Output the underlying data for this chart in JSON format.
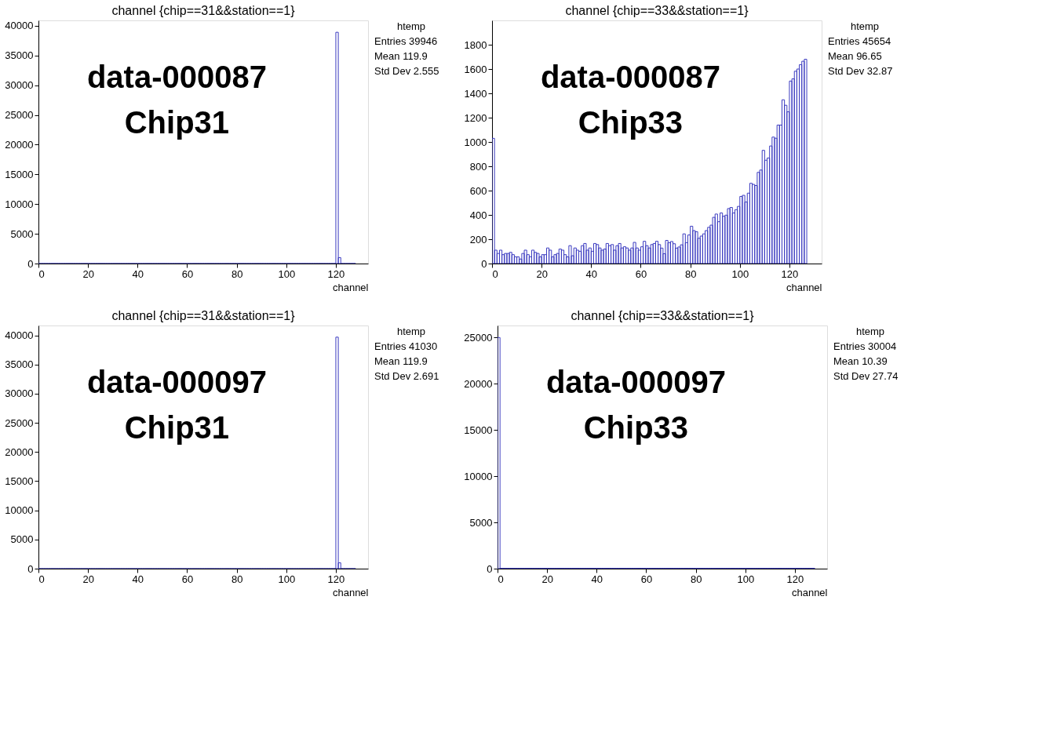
{
  "chart_data": [
    {
      "type": "histogram",
      "title": "channel {chip==31&&station==1}",
      "xlabel": "channel",
      "color": "#3b3bc0",
      "bins": [
        0,
        1,
        2,
        3,
        4,
        5,
        6,
        7,
        8,
        9,
        10,
        11,
        12,
        13,
        14,
        15,
        16,
        17,
        18,
        19,
        20,
        21,
        22,
        23,
        24,
        25,
        26,
        27,
        28,
        29,
        30,
        31,
        32,
        33,
        34,
        35,
        36,
        37,
        38,
        39,
        40,
        41,
        42,
        43,
        44,
        45,
        46,
        47,
        48,
        49,
        50,
        51,
        52,
        53,
        54,
        55,
        56,
        57,
        58,
        59,
        60,
        61,
        62,
        63,
        64,
        65,
        66,
        67,
        68,
        69,
        70,
        71,
        72,
        73,
        74,
        75,
        76,
        77,
        78,
        79,
        80,
        81,
        82,
        83,
        84,
        85,
        86,
        87,
        88,
        89,
        90,
        91,
        92,
        93,
        94,
        95,
        96,
        97,
        98,
        99,
        100,
        101,
        102,
        103,
        104,
        105,
        106,
        107,
        108,
        109,
        110,
        111,
        112,
        113,
        114,
        115,
        116,
        117,
        118,
        119,
        120,
        121,
        122,
        123,
        124,
        125,
        126,
        127,
        128
      ],
      "values": [
        0,
        0,
        0,
        0,
        0,
        0,
        0,
        0,
        0,
        0,
        0,
        0,
        0,
        0,
        0,
        0,
        0,
        0,
        0,
        0,
        0,
        0,
        0,
        0,
        0,
        0,
        0,
        0,
        0,
        0,
        0,
        0,
        0,
        0,
        0,
        0,
        0,
        0,
        0,
        0,
        0,
        0,
        0,
        0,
        0,
        0,
        0,
        0,
        0,
        0,
        0,
        0,
        0,
        0,
        0,
        0,
        0,
        0,
        0,
        0,
        0,
        0,
        0,
        0,
        0,
        0,
        0,
        0,
        0,
        0,
        0,
        0,
        0,
        0,
        0,
        0,
        0,
        0,
        0,
        0,
        0,
        0,
        0,
        0,
        0,
        0,
        0,
        0,
        0,
        0,
        0,
        0,
        0,
        0,
        0,
        0,
        0,
        0,
        0,
        0,
        0,
        0,
        0,
        0,
        0,
        0,
        0,
        0,
        0,
        0,
        0,
        0,
        0,
        0,
        0,
        0,
        0,
        0,
        0,
        0,
        38900,
        1000,
        0,
        0,
        0,
        0,
        0,
        0
      ],
      "xlim": [
        0,
        133
      ],
      "xticks": [
        0,
        20,
        40,
        60,
        80,
        100,
        120
      ],
      "ylim": [
        0,
        40900
      ],
      "yticks": [
        0,
        5000,
        10000,
        15000,
        20000,
        25000,
        30000,
        35000,
        40000
      ],
      "annotations": [
        "data-000087",
        "Chip31",
        "htemp",
        "Entries 39946",
        "Mean 119.9",
        "Std Dev 2.555"
      ]
    },
    {
      "type": "histogram",
      "title": "channel {chip==33&&station==1}",
      "xlabel": "channel",
      "color": "#3b3bc0",
      "bins": [
        0,
        1,
        2,
        3,
        4,
        5,
        6,
        7,
        8,
        9,
        10,
        11,
        12,
        13,
        14,
        15,
        16,
        17,
        18,
        19,
        20,
        21,
        22,
        23,
        24,
        25,
        26,
        27,
        28,
        29,
        30,
        31,
        32,
        33,
        34,
        35,
        36,
        37,
        38,
        39,
        40,
        41,
        42,
        43,
        44,
        45,
        46,
        47,
        48,
        49,
        50,
        51,
        52,
        53,
        54,
        55,
        56,
        57,
        58,
        59,
        60,
        61,
        62,
        63,
        64,
        65,
        66,
        67,
        68,
        69,
        70,
        71,
        72,
        73,
        74,
        75,
        76,
        77,
        78,
        79,
        80,
        81,
        82,
        83,
        84,
        85,
        86,
        87,
        88,
        89,
        90,
        91,
        92,
        93,
        94,
        95,
        96,
        97,
        98,
        99,
        100,
        101,
        102,
        103,
        104,
        105,
        106,
        107,
        108,
        109,
        110,
        111,
        112,
        113,
        114,
        115,
        116,
        117,
        118,
        119,
        120,
        121,
        122,
        123,
        124,
        125,
        126,
        127,
        128
      ],
      "values": [
        1030,
        110,
        83,
        110,
        73,
        83,
        83,
        92,
        73,
        55,
        55,
        37,
        83,
        110,
        73,
        55,
        110,
        92,
        83,
        55,
        73,
        73,
        128,
        110,
        55,
        73,
        83,
        119,
        110,
        73,
        55,
        147,
        64,
        128,
        110,
        101,
        147,
        165,
        110,
        128,
        101,
        165,
        156,
        128,
        110,
        119,
        165,
        147,
        156,
        110,
        147,
        165,
        128,
        138,
        128,
        110,
        128,
        174,
        128,
        110,
        138,
        183,
        147,
        128,
        156,
        165,
        183,
        156,
        127,
        81,
        190,
        172,
        181,
        163,
        127,
        136,
        154,
        244,
        172,
        235,
        307,
        271,
        262,
        208,
        226,
        244,
        271,
        298,
        316,
        380,
        407,
        344,
        416,
        389,
        398,
        452,
        461,
        416,
        443,
        470,
        552,
        561,
        506,
        579,
        660,
        651,
        642,
        750,
        769,
        931,
        850,
        868,
        967,
        1040,
        1031,
        1139,
        1139,
        1347,
        1302,
        1248,
        1501,
        1519,
        1582,
        1600,
        1636,
        1664,
        1680,
        null
      ],
      "xlim": [
        0,
        133
      ],
      "xticks": [
        0,
        20,
        40,
        60,
        80,
        100,
        120
      ],
      "ylim": [
        0,
        2000
      ],
      "yticks": [
        0,
        200,
        400,
        600,
        800,
        1000,
        1200,
        1400,
        1600,
        1800
      ],
      "annotations": [
        "data-000087",
        "Chip33",
        "htemp",
        "Entries 45654",
        "Mean 96.65",
        "Std Dev 32.87"
      ]
    },
    {
      "type": "histogram",
      "title": "channel {chip==31&&station==1}",
      "xlabel": "channel",
      "color": "#3b3bc0",
      "bins": [
        0,
        1,
        2,
        3,
        4,
        5,
        6,
        7,
        8,
        9,
        10,
        11,
        12,
        13,
        14,
        15,
        16,
        17,
        18,
        19,
        20,
        21,
        22,
        23,
        24,
        25,
        26,
        27,
        28,
        29,
        30,
        31,
        32,
        33,
        34,
        35,
        36,
        37,
        38,
        39,
        40,
        41,
        42,
        43,
        44,
        45,
        46,
        47,
        48,
        49,
        50,
        51,
        52,
        53,
        54,
        55,
        56,
        57,
        58,
        59,
        60,
        61,
        62,
        63,
        64,
        65,
        66,
        67,
        68,
        69,
        70,
        71,
        72,
        73,
        74,
        75,
        76,
        77,
        78,
        79,
        80,
        81,
        82,
        83,
        84,
        85,
        86,
        87,
        88,
        89,
        90,
        91,
        92,
        93,
        94,
        95,
        96,
        97,
        98,
        99,
        100,
        101,
        102,
        103,
        104,
        105,
        106,
        107,
        108,
        109,
        110,
        111,
        112,
        113,
        114,
        115,
        116,
        117,
        118,
        119,
        120,
        121,
        122,
        123,
        124,
        125,
        126,
        127,
        128
      ],
      "values": [
        0,
        0,
        0,
        0,
        0,
        0,
        0,
        0,
        0,
        0,
        0,
        0,
        0,
        0,
        0,
        0,
        0,
        0,
        0,
        0,
        0,
        0,
        0,
        0,
        0,
        0,
        0,
        0,
        0,
        0,
        0,
        0,
        0,
        0,
        0,
        0,
        0,
        0,
        0,
        0,
        0,
        0,
        0,
        0,
        0,
        0,
        0,
        0,
        0,
        0,
        0,
        0,
        0,
        0,
        0,
        0,
        0,
        0,
        0,
        0,
        0,
        0,
        0,
        0,
        0,
        0,
        0,
        0,
        0,
        0,
        0,
        0,
        0,
        0,
        0,
        0,
        0,
        0,
        0,
        0,
        0,
        0,
        0,
        0,
        0,
        0,
        0,
        0,
        0,
        0,
        0,
        0,
        0,
        0,
        0,
        0,
        0,
        0,
        0,
        0,
        0,
        0,
        0,
        0,
        0,
        0,
        0,
        0,
        0,
        0,
        0,
        0,
        0,
        0,
        0,
        0,
        0,
        0,
        0,
        0,
        39700,
        1000,
        0,
        0,
        0,
        0,
        0,
        0
      ],
      "xlim": [
        0,
        133
      ],
      "xticks": [
        0,
        20,
        40,
        60,
        80,
        100,
        120
      ],
      "ylim": [
        0,
        41700
      ],
      "yticks": [
        0,
        5000,
        10000,
        15000,
        20000,
        25000,
        30000,
        35000,
        40000
      ],
      "annotations": [
        "data-000097",
        "Chip31",
        "htemp",
        "Entries 41030",
        "Mean 119.9",
        "Std Dev 2.691"
      ]
    },
    {
      "type": "histogram",
      "title": "channel {chip==33&&station==1}",
      "xlabel": "channel",
      "color": "#3b3bc0",
      "bins": [
        0,
        1,
        2,
        3,
        4,
        5,
        6,
        7,
        8,
        9,
        10,
        11,
        12,
        13,
        14,
        15,
        16,
        17,
        18,
        19,
        20,
        21,
        22,
        23,
        24,
        25,
        26,
        27,
        28,
        29,
        30,
        31,
        32,
        33,
        34,
        35,
        36,
        37,
        38,
        39,
        40,
        41,
        42,
        43,
        44,
        45,
        46,
        47,
        48,
        49,
        50,
        51,
        52,
        53,
        54,
        55,
        56,
        57,
        58,
        59,
        60,
        61,
        62,
        63,
        64,
        65,
        66,
        67,
        68,
        69,
        70,
        71,
        72,
        73,
        74,
        75,
        76,
        77,
        78,
        79,
        80,
        81,
        82,
        83,
        84,
        85,
        86,
        87,
        88,
        89,
        90,
        91,
        92,
        93,
        94,
        95,
        96,
        97,
        98,
        99,
        100,
        101,
        102,
        103,
        104,
        105,
        106,
        107,
        108,
        109,
        110,
        111,
        112,
        113,
        114,
        115,
        116,
        117,
        118,
        119,
        120,
        121,
        122,
        123,
        124,
        125,
        126,
        127,
        128
      ],
      "values": [
        25000,
        40,
        40,
        40,
        40,
        40,
        40,
        40,
        40,
        40,
        40,
        40,
        40,
        40,
        40,
        40,
        40,
        40,
        40,
        40,
        40,
        40,
        40,
        40,
        40,
        40,
        40,
        40,
        40,
        40,
        40,
        40,
        40,
        40,
        40,
        40,
        40,
        40,
        40,
        40,
        40,
        40,
        40,
        40,
        40,
        40,
        40,
        40,
        40,
        40,
        40,
        40,
        40,
        40,
        40,
        40,
        40,
        40,
        40,
        40,
        40,
        40,
        40,
        40,
        40,
        40,
        40,
        40,
        40,
        40,
        40,
        40,
        40,
        40,
        40,
        40,
        40,
        40,
        40,
        40,
        40,
        40,
        40,
        40,
        40,
        40,
        40,
        40,
        40,
        40,
        40,
        40,
        40,
        40,
        40,
        40,
        40,
        40,
        40,
        40,
        40,
        40,
        40,
        40,
        40,
        40,
        40,
        40,
        40,
        40,
        40,
        40,
        40,
        40,
        40,
        40,
        40,
        40,
        40,
        40,
        40,
        40,
        40,
        40,
        40,
        40,
        40,
        40
      ],
      "xlim": [
        0,
        133
      ],
      "xticks": [
        0,
        20,
        40,
        60,
        80,
        100,
        120
      ],
      "ylim": [
        0,
        26300
      ],
      "yticks": [
        0,
        5000,
        10000,
        15000,
        20000,
        25000
      ],
      "annotations": [
        "data-000097",
        "Chip33",
        "htemp",
        "Entries 30004",
        "Mean 10.39",
        "Std Dev 27.74"
      ]
    }
  ]
}
